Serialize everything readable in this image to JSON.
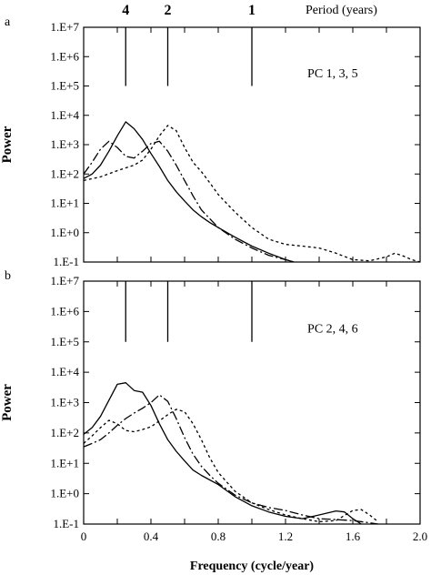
{
  "chart_data": [
    {
      "type": "line",
      "panel_letter": "a",
      "annotation": "PC 1, 3, 5",
      "title": "",
      "ylabel": "Power",
      "xlabel": "",
      "y_scale": "log",
      "xlim": [
        0,
        2.0
      ],
      "ylim": [
        0.1,
        10000000
      ],
      "ytick_labels": [
        "1.E+7",
        "1.E+6",
        "1.E+5",
        "1.E+4",
        "1.E+3",
        "1.E+2",
        "1.E+1",
        "1.E+0",
        "1.E-1"
      ],
      "ytick_values": [
        10000000,
        1000000,
        100000,
        10000,
        1000,
        100,
        10,
        1,
        0.1
      ],
      "top_axis": {
        "label": "Period (years)",
        "ticks": [
          {
            "label": "4",
            "frequency": 0.25
          },
          {
            "label": "2",
            "frequency": 0.5
          },
          {
            "label": "1",
            "frequency": 1.0
          }
        ]
      },
      "period_markers": [
        0.25,
        0.5,
        1.0
      ],
      "marker_range": [
        100000,
        10000000
      ],
      "series": [
        {
          "style": "solid",
          "x": [
            0,
            0.05,
            0.1,
            0.15,
            0.2,
            0.25,
            0.3,
            0.35,
            0.4,
            0.45,
            0.5,
            0.55,
            0.6,
            0.65,
            0.7,
            0.75,
            0.8,
            0.9,
            1.0,
            1.1,
            1.2,
            1.25
          ],
          "y": [
            70,
            100,
            200,
            600,
            2000,
            6000,
            3500,
            1500,
            500,
            180,
            60,
            25,
            12,
            6,
            3.5,
            2.2,
            1.5,
            0.7,
            0.35,
            0.2,
            0.12,
            0.1
          ]
        },
        {
          "style": "long-dash",
          "x": [
            0,
            0.05,
            0.1,
            0.15,
            0.2,
            0.25,
            0.3,
            0.35,
            0.4,
            0.45,
            0.5,
            0.55,
            0.6,
            0.65,
            0.7,
            0.75,
            0.8,
            0.9,
            1.0,
            1.1,
            1.2,
            1.25
          ],
          "y": [
            100,
            250,
            700,
            1300,
            800,
            400,
            350,
            600,
            1100,
            1300,
            600,
            200,
            60,
            18,
            6,
            3,
            1.5,
            0.6,
            0.3,
            0.17,
            0.12,
            0.1
          ]
        },
        {
          "style": "short-dash",
          "x": [
            0,
            0.1,
            0.2,
            0.3,
            0.35,
            0.4,
            0.45,
            0.5,
            0.55,
            0.6,
            0.65,
            0.7,
            0.75,
            0.8,
            0.9,
            1.0,
            1.1,
            1.2,
            1.3,
            1.4,
            1.5,
            1.6,
            1.7,
            1.8,
            1.85,
            1.9,
            1.95,
            2.0
          ],
          "y": [
            60,
            80,
            130,
            200,
            300,
            700,
            2000,
            4500,
            3000,
            800,
            250,
            120,
            50,
            20,
            5,
            1.5,
            0.6,
            0.4,
            0.35,
            0.3,
            0.2,
            0.12,
            0.11,
            0.15,
            0.2,
            0.16,
            0.12,
            0.1
          ]
        }
      ]
    },
    {
      "type": "line",
      "panel_letter": "b",
      "annotation": "PC 2, 4, 6",
      "title": "",
      "ylabel": "Power",
      "xlabel": "Frequency (cycle/year)",
      "y_scale": "log",
      "xlim": [
        0,
        2.0
      ],
      "ylim": [
        0.1,
        10000000
      ],
      "xtick_labels": [
        "0",
        "0.4",
        "0.8",
        "1.2",
        "1.6",
        "2.0"
      ],
      "xtick_values": [
        0,
        0.4,
        0.8,
        1.2,
        1.6,
        2.0
      ],
      "ytick_labels": [
        "1.E+7",
        "1.E+6",
        "1.E+5",
        "1.E+4",
        "1.E+3",
        "1.E+2",
        "1.E+1",
        "1.E+0",
        "1.E-1"
      ],
      "ytick_values": [
        10000000,
        1000000,
        100000,
        10000,
        1000,
        100,
        10,
        1,
        0.1
      ],
      "period_markers": [
        0.25,
        0.5,
        1.0
      ],
      "marker_range": [
        100000,
        10000000
      ],
      "series": [
        {
          "style": "solid",
          "x": [
            0,
            0.05,
            0.1,
            0.15,
            0.2,
            0.25,
            0.3,
            0.35,
            0.4,
            0.45,
            0.5,
            0.55,
            0.6,
            0.65,
            0.7,
            0.8,
            0.9,
            1.0,
            1.1,
            1.2,
            1.3,
            1.4,
            1.5,
            1.55,
            1.6,
            1.65
          ],
          "y": [
            90,
            150,
            350,
            1200,
            4000,
            4500,
            2500,
            2200,
            800,
            200,
            60,
            25,
            12,
            6,
            4,
            2,
            0.8,
            0.4,
            0.25,
            0.18,
            0.15,
            0.2,
            0.27,
            0.25,
            0.15,
            0.1
          ]
        },
        {
          "style": "long-dash",
          "x": [
            0,
            0.05,
            0.1,
            0.15,
            0.2,
            0.25,
            0.3,
            0.35,
            0.4,
            0.45,
            0.5,
            0.55,
            0.6,
            0.65,
            0.7,
            0.75,
            0.8,
            0.9,
            1.0,
            1.1,
            1.2,
            1.3,
            1.4,
            1.5,
            1.6,
            1.7,
            1.75
          ],
          "y": [
            35,
            45,
            60,
            100,
            180,
            300,
            450,
            650,
            1000,
            1800,
            1100,
            300,
            70,
            20,
            8,
            4,
            2.2,
            0.9,
            0.5,
            0.35,
            0.28,
            0.2,
            0.15,
            0.14,
            0.13,
            0.11,
            0.1
          ]
        },
        {
          "style": "short-dash",
          "x": [
            0,
            0.05,
            0.1,
            0.15,
            0.2,
            0.25,
            0.3,
            0.35,
            0.4,
            0.45,
            0.5,
            0.55,
            0.6,
            0.65,
            0.7,
            0.75,
            0.8,
            0.9,
            1.0,
            1.1,
            1.2,
            1.3,
            1.4,
            1.5,
            1.6,
            1.65,
            1.7,
            1.75
          ],
          "y": [
            45,
            80,
            150,
            260,
            200,
            120,
            110,
            130,
            160,
            250,
            400,
            600,
            500,
            200,
            60,
            15,
            5,
            1.2,
            0.5,
            0.3,
            0.2,
            0.15,
            0.12,
            0.13,
            0.28,
            0.3,
            0.2,
            0.12
          ]
        }
      ]
    }
  ]
}
